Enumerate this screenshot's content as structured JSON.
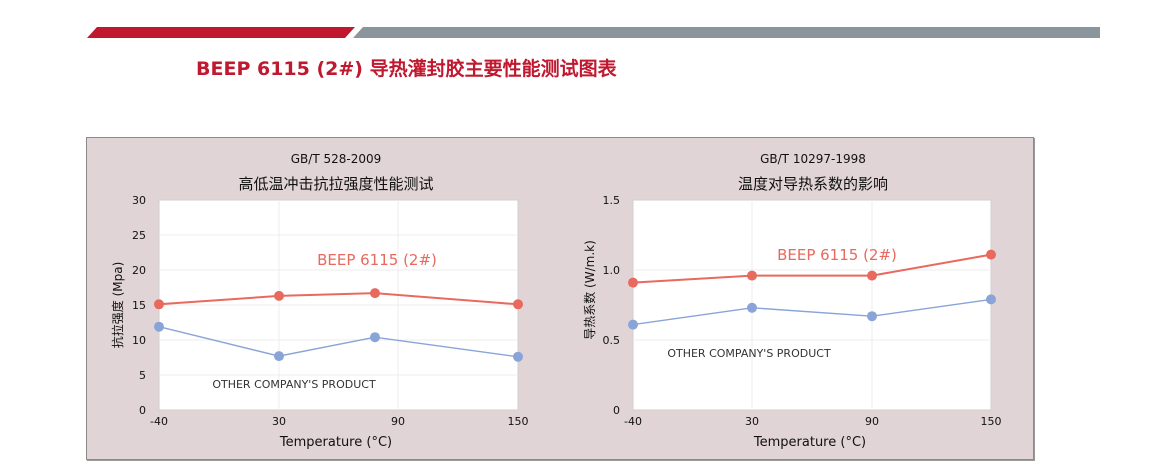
{
  "header": {
    "title": "BEEP 6115 (2#) 导热灌封胶主要性能测试图表",
    "accent_color": "#c0182f",
    "secondary_bar_color": "#8a969b"
  },
  "charts": {
    "left": {
      "standard": "GB/T 528-2009",
      "title": "高低温冲击抗拉强度性能测试",
      "ylabel": "抗拉强度 (Mpa)",
      "xlabel": "Temperature (°C)",
      "yticks": [
        "0",
        "5",
        "10",
        "15",
        "20",
        "25",
        "30"
      ],
      "xticks": [
        "-40",
        "30",
        "90",
        "150"
      ],
      "series_label_red": "BEEP 6115 (2#)",
      "series_label_blue": "OTHER COMPANY'S  PRODUCT"
    },
    "right": {
      "standard": "GB/T 10297-1998",
      "title": "温度对导热系数的影响",
      "ylabel": "导热系数 (W/m.k)",
      "xlabel": "Temperature (°C)",
      "yticks": [
        "0",
        "0.5",
        "1.0",
        "1.5"
      ],
      "xticks": [
        "-40",
        "30",
        "90",
        "150"
      ],
      "series_label_red": "BEEP 6115 (2#)",
      "series_label_blue": "OTHER COMPANY'S  PRODUCT"
    }
  },
  "chart_data": [
    {
      "type": "line",
      "title": "高低温冲击抗拉强度性能测试",
      "subtitle": "GB/T 528-2009",
      "xlabel": "Temperature (°C)",
      "ylabel": "抗拉强度 (Mpa)",
      "categories": [
        "-40",
        "30",
        "90",
        "150"
      ],
      "x_tick_labels": [
        "-40",
        "30",
        "90",
        "150"
      ],
      "ylim": [
        0,
        30
      ],
      "yticks": [
        0,
        5,
        10,
        15,
        20,
        25,
        30
      ],
      "grid": true,
      "series": [
        {
          "name": "BEEP 6115 (2#)",
          "color": "#e8695e",
          "values": [
            15.1,
            16.3,
            16.7,
            15.1
          ]
        },
        {
          "name": "OTHER COMPANY'S PRODUCT",
          "color": "#8aa4d8",
          "values": [
            11.9,
            7.7,
            10.4,
            7.6
          ]
        }
      ],
      "annotations": [
        "BEEP 6115 (2#)",
        "OTHER COMPANY'S  PRODUCT"
      ]
    },
    {
      "type": "line",
      "title": "温度对导热系数的影响",
      "subtitle": "GB/T 10297-1998",
      "xlabel": "Temperature (°C)",
      "ylabel": "导热系数 (W/m.k)",
      "categories": [
        "-40",
        "30",
        "90",
        "150"
      ],
      "ylim": [
        0,
        1.5
      ],
      "yticks": [
        0,
        0.5,
        1.0,
        1.5
      ],
      "grid": true,
      "series": [
        {
          "name": "BEEP 6115 (2#)",
          "color": "#e8695e",
          "values": [
            0.91,
            0.96,
            0.96,
            1.11
          ]
        },
        {
          "name": "OTHER COMPANY'S PRODUCT",
          "color": "#8aa4d8",
          "values": [
            0.61,
            0.73,
            0.67,
            0.79
          ]
        }
      ],
      "annotations": [
        "BEEP 6115 (2#)",
        "OTHER COMPANY'S  PRODUCT"
      ]
    }
  ]
}
